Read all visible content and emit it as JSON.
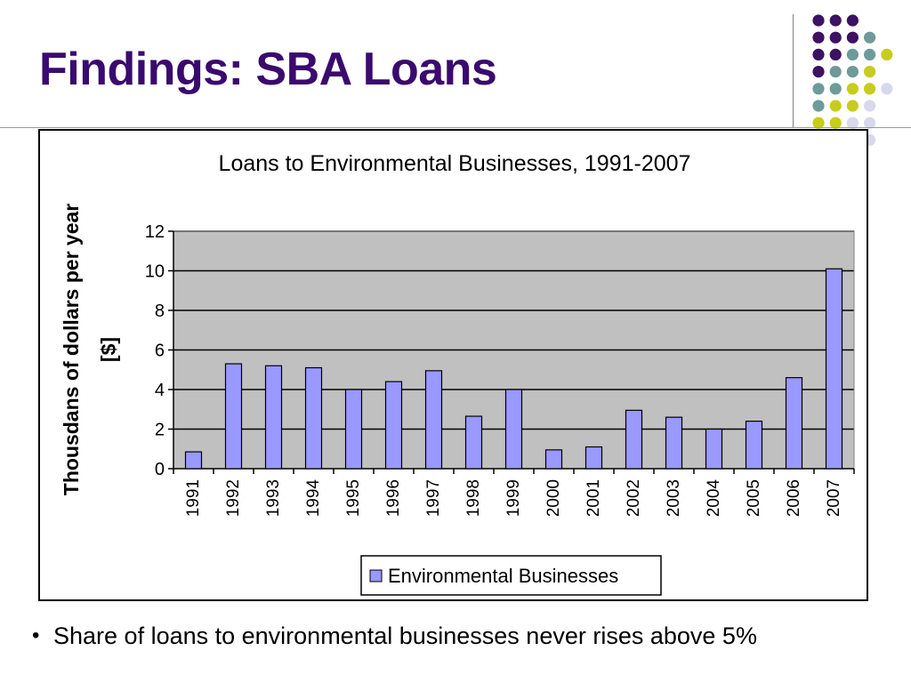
{
  "slide": {
    "title": "Findings: SBA Loans",
    "bullet": "Share of loans to environmental businesses never rises above 5%"
  },
  "decor": {
    "dot_colors": {
      "purple": "#3d1163",
      "teal": "#6f9a9a",
      "lime": "#c7cc1f",
      "lavender": "#d8d8ec"
    },
    "dot_grid": [
      [
        "purple",
        "purple",
        "purple",
        null,
        null
      ],
      [
        "purple",
        "purple",
        "purple",
        "teal",
        null
      ],
      [
        "purple",
        "purple",
        "teal",
        "teal",
        "lime"
      ],
      [
        "purple",
        "teal",
        "teal",
        "lime",
        null
      ],
      [
        "teal",
        "teal",
        "lime",
        "lime",
        "lavender"
      ],
      [
        "teal",
        "lime",
        "lime",
        "lavender",
        null
      ],
      [
        "lime",
        "lime",
        "lavender",
        "lavender",
        null
      ],
      [
        null,
        null,
        null,
        "lavender",
        null
      ]
    ]
  },
  "chart_data": {
    "type": "bar",
    "title": "Loans to Environmental Businesses, 1991-2007",
    "ylabel_lines": [
      "Thousdans of dollars per year",
      "[$]"
    ],
    "xlabel": "",
    "categories": [
      "1991",
      "1992",
      "1993",
      "1994",
      "1995",
      "1996",
      "1997",
      "1998",
      "1999",
      "2000",
      "2001",
      "2002",
      "2003",
      "2004",
      "2005",
      "2006",
      "2007"
    ],
    "series": [
      {
        "name": "Environmental Businesses",
        "values": [
          0.85,
          5.3,
          5.2,
          5.1,
          4.0,
          4.4,
          4.95,
          2.65,
          4.0,
          0.95,
          1.1,
          2.95,
          2.6,
          2.0,
          2.4,
          4.6,
          10.1
        ],
        "color": "#9999ff"
      }
    ],
    "ylim": [
      0,
      12
    ],
    "yticks": [
      0,
      2,
      4,
      6,
      8,
      10,
      12
    ],
    "grid": true,
    "plot_background": "#c0c0c0",
    "legend_position": "bottom-center",
    "x_tick_rotation": "vertical"
  }
}
